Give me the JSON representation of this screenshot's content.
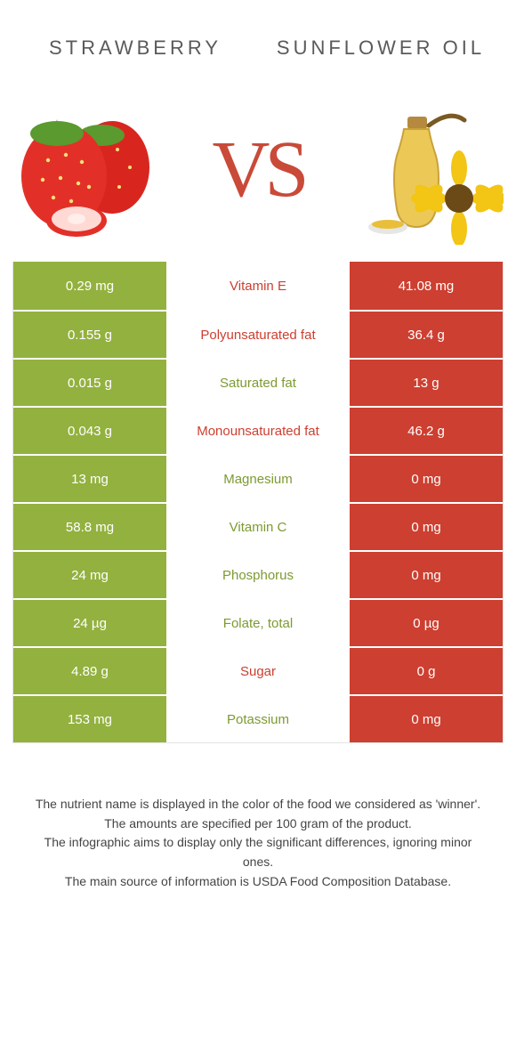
{
  "colors": {
    "left": "#93b13f",
    "right": "#cd3f30",
    "mid_left_text": "#7d9a31",
    "mid_right_text": "#cd3f30"
  },
  "header": {
    "left_title": "Strawberry",
    "right_title": "Sunflower oil",
    "vs": "VS"
  },
  "icons": {
    "left": "strawberry",
    "right": "sunflower-oil"
  },
  "rows": [
    {
      "nutrient": "Vitamin E",
      "left": "0.29 mg",
      "right": "41.08 mg",
      "winner": "right"
    },
    {
      "nutrient": "Polyunsaturated fat",
      "left": "0.155 g",
      "right": "36.4 g",
      "winner": "right"
    },
    {
      "nutrient": "Saturated fat",
      "left": "0.015 g",
      "right": "13 g",
      "winner": "left"
    },
    {
      "nutrient": "Monounsaturated fat",
      "left": "0.043 g",
      "right": "46.2 g",
      "winner": "right"
    },
    {
      "nutrient": "Magnesium",
      "left": "13 mg",
      "right": "0 mg",
      "winner": "left"
    },
    {
      "nutrient": "Vitamin C",
      "left": "58.8 mg",
      "right": "0 mg",
      "winner": "left"
    },
    {
      "nutrient": "Phosphorus",
      "left": "24 mg",
      "right": "0 mg",
      "winner": "left"
    },
    {
      "nutrient": "Folate, total",
      "left": "24 µg",
      "right": "0 µg",
      "winner": "left"
    },
    {
      "nutrient": "Sugar",
      "left": "4.89 g",
      "right": "0 g",
      "winner": "right"
    },
    {
      "nutrient": "Potassium",
      "left": "153 mg",
      "right": "0 mg",
      "winner": "left"
    }
  ],
  "footer": {
    "l1": "The nutrient name is displayed in the color of the food we considered as 'winner'.",
    "l2": "The amounts are specified per 100 gram of the product.",
    "l3": "The infographic aims to display only the significant differences, ignoring minor ones.",
    "l4": "The main source of information is USDA Food Composition Database."
  }
}
